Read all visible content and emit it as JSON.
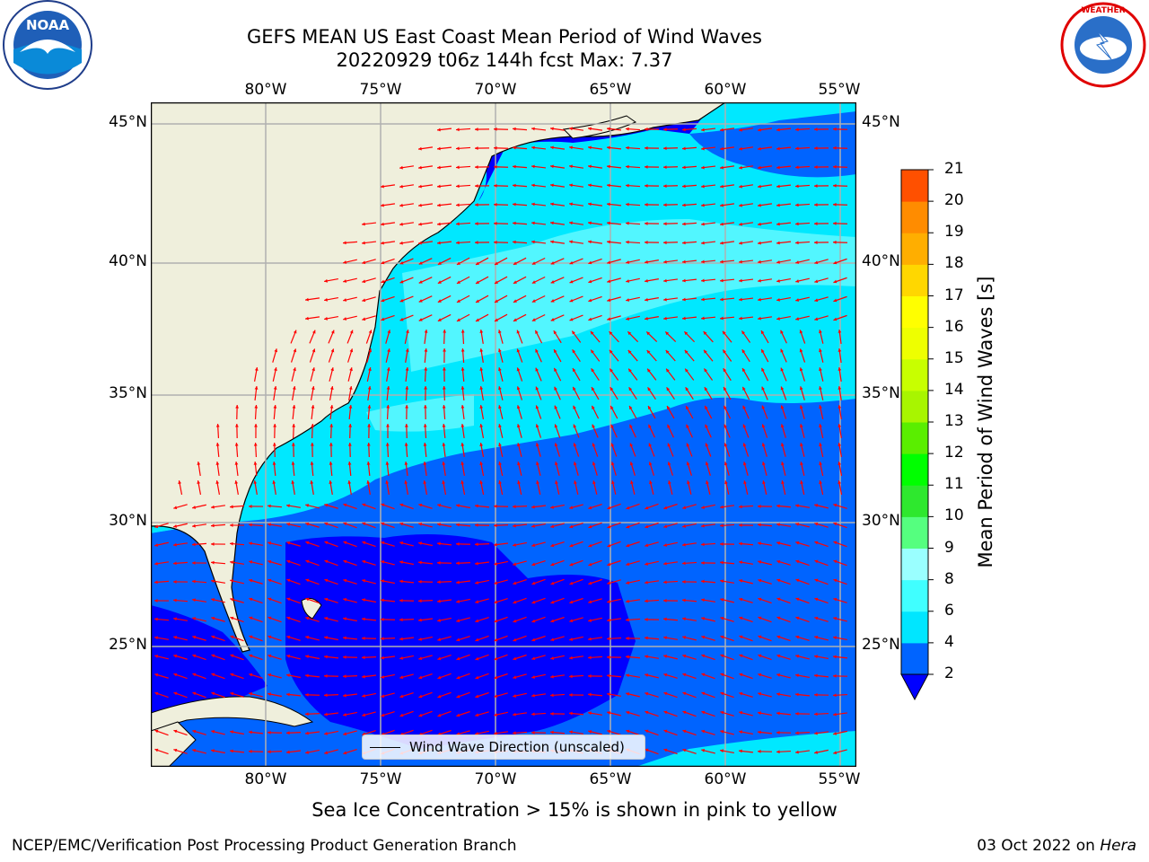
{
  "title": {
    "line1": "GEFS MEAN US East Coast Mean Period of Wind Waves",
    "line2": "20220929 t06z 144h fcst   Max: 7.37"
  },
  "map": {
    "lon_labels": [
      "80°W",
      "75°W",
      "70°W",
      "65°W",
      "60°W",
      "55°W"
    ],
    "lat_labels": [
      "45°N",
      "40°N",
      "35°N",
      "30°N",
      "25°N"
    ],
    "lon_range": [
      -85,
      -54.5
    ],
    "lat_range": [
      20.5,
      46
    ],
    "colors": {
      "land": "#efefdc",
      "grid": "#b0b0b0",
      "arrow": "#ff0000"
    }
  },
  "legend": {
    "label": "Wind Wave Direction (unscaled)"
  },
  "colorbar": {
    "label": "Mean Period of Wind Waves [s]",
    "ticks": [
      "2",
      "4",
      "6",
      "8",
      "9",
      "10",
      "11",
      "12",
      "13",
      "14",
      "15",
      "16",
      "17",
      "18",
      "19",
      "20",
      "21"
    ],
    "colors": [
      "#0064ff",
      "#00e6ff",
      "#40ffff",
      "#9affff",
      "#55ff7f",
      "#2ee82e",
      "#00ff00",
      "#5aee00",
      "#a8f500",
      "#c8ff00",
      "#eeff00",
      "#ffff00",
      "#ffd700",
      "#ffae00",
      "#ff8c00",
      "#ff5000",
      "#ff2600",
      "#ff0000"
    ],
    "under_color": "#0000ff"
  },
  "notes": {
    "ice": "Sea Ice Concentration > 15% is shown in pink to yellow",
    "org": "NCEP/EMC/Verification Post Processing Product Generation Branch",
    "date": "03 Oct 2022 on",
    "host": "Hera"
  },
  "logos": {
    "left": "NOAA",
    "right": "NATIONAL WEATHER SERVICE"
  }
}
